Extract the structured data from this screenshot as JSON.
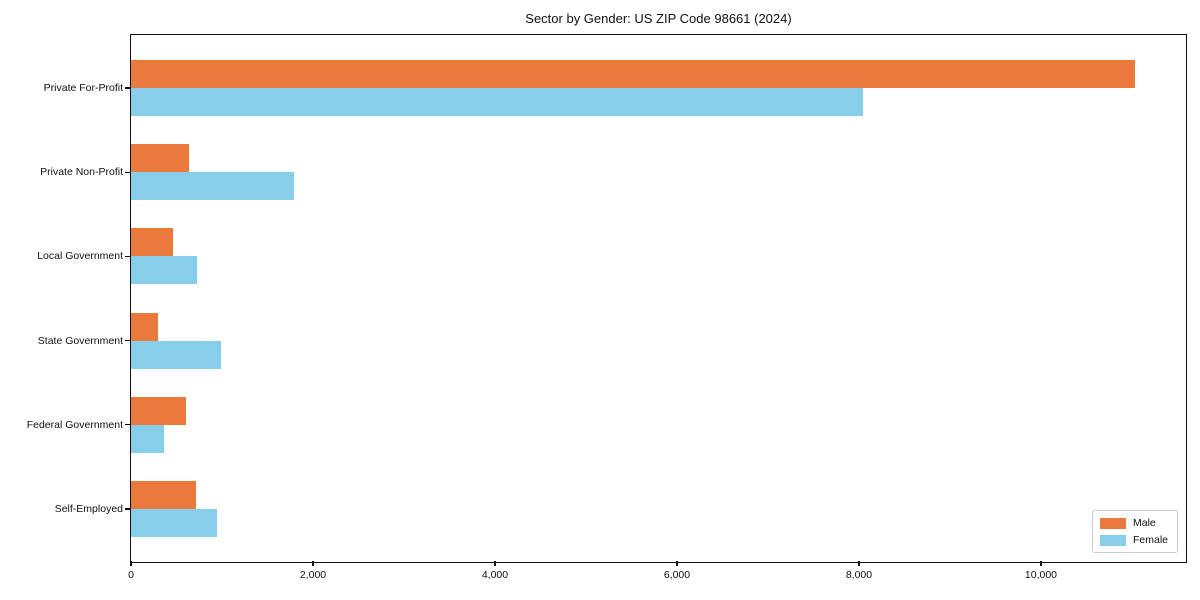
{
  "chart_data": {
    "type": "bar",
    "orientation": "horizontal",
    "title": "Sector by Gender: US ZIP Code 98661 (2024)",
    "categories": [
      "Private For-Profit",
      "Private Non-Profit",
      "Local Government",
      "State Government",
      "Federal Government",
      "Self-Employed"
    ],
    "series": [
      {
        "name": "Male",
        "color": "#E97A3C",
        "values": [
          11030,
          640,
          460,
          300,
          600,
          710
        ]
      },
      {
        "name": "Female",
        "color": "#87CEEB",
        "values": [
          8040,
          1790,
          720,
          990,
          360,
          940
        ]
      }
    ],
    "xlim": [
      0,
      11583
    ],
    "x_ticks": [
      0,
      2000,
      4000,
      6000,
      8000,
      10000
    ],
    "x_tick_labels": [
      "0",
      "2,000",
      "4,000",
      "6,000",
      "8,000",
      "10,000"
    ],
    "xlabel": "",
    "ylabel": "",
    "grid": false,
    "legend": {
      "position": "lower right"
    }
  }
}
